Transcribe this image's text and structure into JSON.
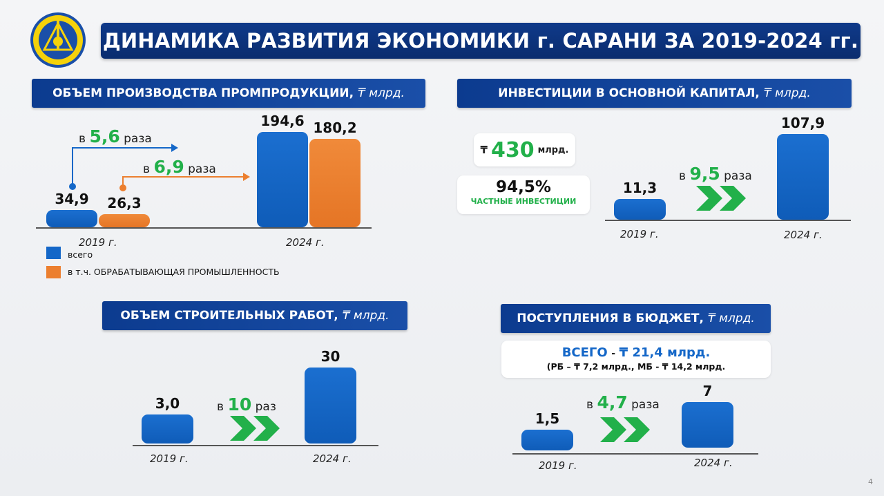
{
  "header": {
    "title": "ДИНАМИКА РАЗВИТИЯ ЭКОНОМИКИ г. САРАНИ ЗА 2019-2024 гг."
  },
  "colors": {
    "navy": "#0c3b8f",
    "bar_blue": "#1467c8",
    "bar_orange": "#ec7f2f",
    "growth_green": "#22b04a",
    "total_blue": "#1467c8"
  },
  "chart_data": [
    {
      "type": "bar",
      "title": "ОБЪЕМ ПРОИЗВОДСТВА ПРОМПРОДУКЦИИ,",
      "unit": "₸ млрд.",
      "categories": [
        "2019 г.",
        "2024 г."
      ],
      "series": [
        {
          "name": "всего",
          "values": [
            34.9,
            194.6
          ],
          "labels": [
            "34,9",
            "194,6"
          ],
          "color": "#1467c8"
        },
        {
          "name": "в т.ч. ОБРАБАТЫВАЮЩАЯ ПРОМЫШЛЕННОСТЬ",
          "values": [
            26.3,
            180.2
          ],
          "labels": [
            "26,3",
            "180,2"
          ],
          "color": "#ec7f2f"
        }
      ],
      "annotations": [
        {
          "prefix": "в",
          "value": "5,6",
          "suffix": "раза",
          "series": "всего"
        },
        {
          "prefix": "в",
          "value": "6,9",
          "suffix": "раза",
          "series": "в т.ч. ОБРАБАТЫВАЮЩАЯ ПРОМЫШЛЕННОСТЬ"
        }
      ],
      "legend": "bottom-left"
    },
    {
      "type": "bar",
      "title": "ИНВЕСТИЦИИ В ОСНОВНОЙ КАПИТАЛ,",
      "unit": "₸ млрд.",
      "categories": [
        "2019 г.",
        "2024 г."
      ],
      "values": [
        11.3,
        107.9
      ],
      "labels": [
        "11,3",
        "107,9"
      ],
      "growth": {
        "prefix": "в",
        "value": "9,5",
        "suffix": "раза"
      },
      "cards": {
        "total": {
          "currency": "₸",
          "value": "430",
          "unit": "млрд."
        },
        "private": {
          "value": "94,5%",
          "label": "ЧАСТНЫЕ ИНВЕСТИЦИИ"
        }
      }
    },
    {
      "type": "bar",
      "title": "ОБЪЕМ СТРОИТЕЛЬНЫХ РАБОТ,",
      "unit": "₸ млрд.",
      "categories": [
        "2019 г.",
        "2024 г."
      ],
      "values": [
        3.0,
        30
      ],
      "labels": [
        "3,0",
        "30"
      ],
      "growth": {
        "prefix": "в",
        "value": "10",
        "suffix": "раз"
      }
    },
    {
      "type": "bar",
      "title": "ПОСТУПЛЕНИЯ В БЮДЖЕТ,",
      "unit": "₸ млрд.",
      "categories": [
        "2019 г.",
        "2024 г."
      ],
      "values": [
        1.5,
        7
      ],
      "labels": [
        "1,5",
        "7"
      ],
      "growth": {
        "prefix": "в",
        "value": "4,7",
        "suffix": "раза"
      },
      "summary": {
        "label": "ВСЕГО",
        "dash": "-",
        "value": "₸ 21,4 млрд.",
        "breakdown": "(РБ – ₸ 7,2 млрд., МБ - ₸ 14,2 млрд."
      }
    }
  ],
  "footer": {
    "page_number": "4"
  }
}
